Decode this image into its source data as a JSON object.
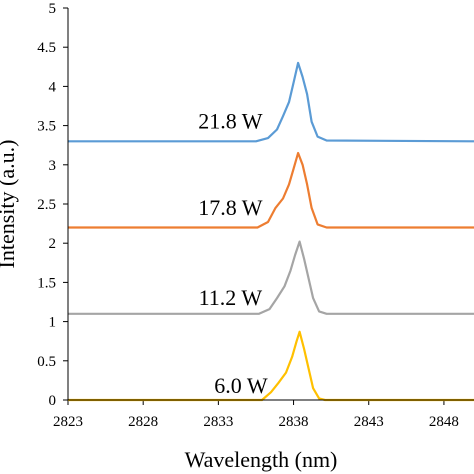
{
  "chart_data": {
    "type": "line",
    "title": "",
    "xlabel": "Wavelength (nm)",
    "ylabel": "Intensity (a.u.)",
    "xlim": [
      2823,
      2850
    ],
    "ylim": [
      0,
      5
    ],
    "xticks": [
      "2823",
      "2828",
      "2833",
      "2838",
      "2843",
      "2848"
    ],
    "yticks": [
      "0",
      "0.5",
      "1",
      "1.5",
      "2",
      "2.5",
      "3",
      "3.5",
      "4",
      "4.5",
      "5"
    ],
    "grid": false,
    "legend": "none",
    "series": [
      {
        "name": "21.8 W",
        "color": "#5b9bd5",
        "label_at": [
          2833.8,
          3.55
        ],
        "points": [
          [
            2823,
            3.3
          ],
          [
            2835.5,
            3.3
          ],
          [
            2836.3,
            3.34
          ],
          [
            2836.9,
            3.45
          ],
          [
            2837.3,
            3.62
          ],
          [
            2837.7,
            3.8
          ],
          [
            2838.0,
            4.05
          ],
          [
            2838.3,
            4.3
          ],
          [
            2838.6,
            4.12
          ],
          [
            2838.9,
            3.9
          ],
          [
            2839.2,
            3.55
          ],
          [
            2839.6,
            3.36
          ],
          [
            2840.2,
            3.31
          ],
          [
            2850,
            3.3
          ]
        ]
      },
      {
        "name": "17.8 W",
        "color": "#ed7d31",
        "label_at": [
          2833.8,
          2.45
        ],
        "points": [
          [
            2823,
            2.2
          ],
          [
            2835.6,
            2.2
          ],
          [
            2836.3,
            2.27
          ],
          [
            2836.8,
            2.45
          ],
          [
            2837.3,
            2.57
          ],
          [
            2837.7,
            2.75
          ],
          [
            2838.0,
            2.95
          ],
          [
            2838.3,
            3.15
          ],
          [
            2838.6,
            3.0
          ],
          [
            2838.9,
            2.75
          ],
          [
            2839.2,
            2.45
          ],
          [
            2839.6,
            2.24
          ],
          [
            2840.2,
            2.2
          ],
          [
            2850,
            2.2
          ]
        ]
      },
      {
        "name": "11.2 W",
        "color": "#a5a5a5",
        "label_at": [
          2833.8,
          1.3
        ],
        "points": [
          [
            2823,
            1.1
          ],
          [
            2835.7,
            1.1
          ],
          [
            2836.4,
            1.16
          ],
          [
            2836.9,
            1.3
          ],
          [
            2837.4,
            1.45
          ],
          [
            2837.8,
            1.65
          ],
          [
            2838.1,
            1.85
          ],
          [
            2838.4,
            2.02
          ],
          [
            2838.7,
            1.8
          ],
          [
            2839.0,
            1.55
          ],
          [
            2839.3,
            1.3
          ],
          [
            2839.7,
            1.13
          ],
          [
            2840.2,
            1.1
          ],
          [
            2850,
            1.1
          ]
        ]
      },
      {
        "name": "6.0 W",
        "color": "#ffc000",
        "label_at": [
          2834.5,
          0.18
        ],
        "points": [
          [
            2823,
            0.0
          ],
          [
            2835.9,
            0.0
          ],
          [
            2836.5,
            0.1
          ],
          [
            2837.0,
            0.22
          ],
          [
            2837.5,
            0.35
          ],
          [
            2837.9,
            0.55
          ],
          [
            2838.2,
            0.75
          ],
          [
            2838.4,
            0.87
          ],
          [
            2838.7,
            0.65
          ],
          [
            2839.0,
            0.4
          ],
          [
            2839.3,
            0.15
          ],
          [
            2839.7,
            0.02
          ],
          [
            2840.1,
            0.0
          ],
          [
            2850,
            0.0
          ]
        ]
      }
    ]
  }
}
